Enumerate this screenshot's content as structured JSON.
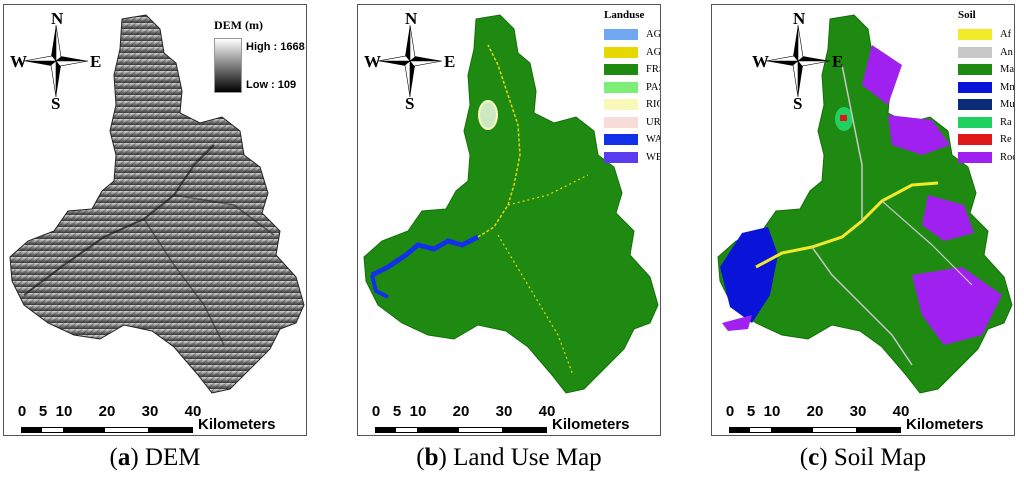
{
  "panels": [
    {
      "caption_letter": "a",
      "caption_text": "DEM",
      "legend_title": "DEM (m)",
      "high_label": "High : 1668",
      "low_label": "Low : 109"
    },
    {
      "caption_letter": "b",
      "caption_text": "Land Use Map",
      "legend_title": "Landuse",
      "legend_items": [
        {
          "label": "AGRC",
          "color": "#6fa8f0"
        },
        {
          "label": "AGRR",
          "color": "#e6d800"
        },
        {
          "label": "FRST",
          "color": "#1f8a12"
        },
        {
          "label": "PAST",
          "color": "#7dee76"
        },
        {
          "label": "RICE",
          "color": "#f8f8b8"
        },
        {
          "label": "URMD",
          "color": "#f8dcd8"
        },
        {
          "label": "WATR",
          "color": "#1230e8"
        },
        {
          "label": "WETF",
          "color": "#5a3cf0"
        }
      ]
    },
    {
      "caption_letter": "c",
      "caption_text": "Soil Map",
      "legend_title": "Soil",
      "legend_items": [
        {
          "label": "Af",
          "color": "#f2ea2a"
        },
        {
          "label": "An",
          "color": "#c8c8c8"
        },
        {
          "label": "Ma",
          "color": "#1f8a12"
        },
        {
          "label": "Mm",
          "color": "#0a14d8"
        },
        {
          "label": "Mu",
          "color": "#0a2a7a"
        },
        {
          "label": "Ra",
          "color": "#20d060"
        },
        {
          "label": "Re",
          "color": "#e01818"
        },
        {
          "label": "Rocky",
          "color": "#a020f0"
        }
      ]
    }
  ],
  "compass": {
    "n": "N",
    "s": "S",
    "e": "E",
    "w": "W",
    "icon": "compass-rose-icon"
  },
  "scale": {
    "ticks": [
      "0",
      "5",
      "10",
      "20",
      "30",
      "40"
    ],
    "unit": "Kilometers"
  }
}
